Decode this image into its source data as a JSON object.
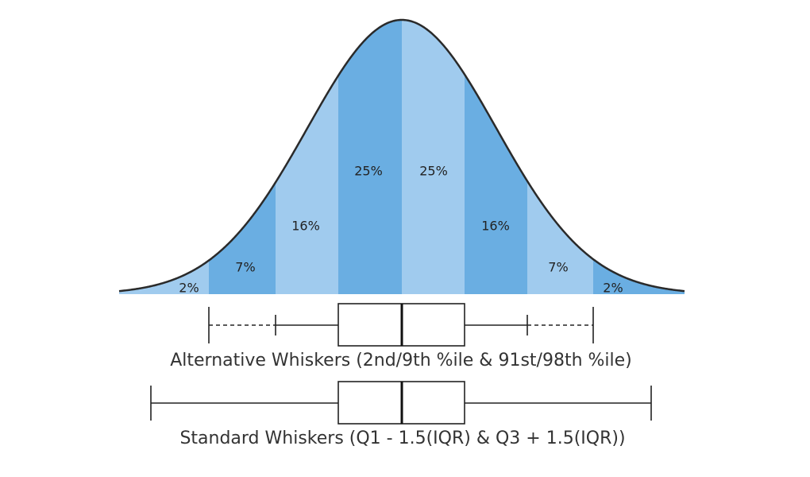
{
  "segments": [
    "2%",
    "7%",
    "16%",
    "25%",
    "25%",
    "16%",
    "7%",
    "2%"
  ],
  "alternative_caption": "Alternative Whiskers (2nd/9th %ile & 91st/98th %ile)",
  "standard_caption": "Standard Whiskers (Q1 - 1.5(IQR) & Q3 + 1.5(IQR))"
}
